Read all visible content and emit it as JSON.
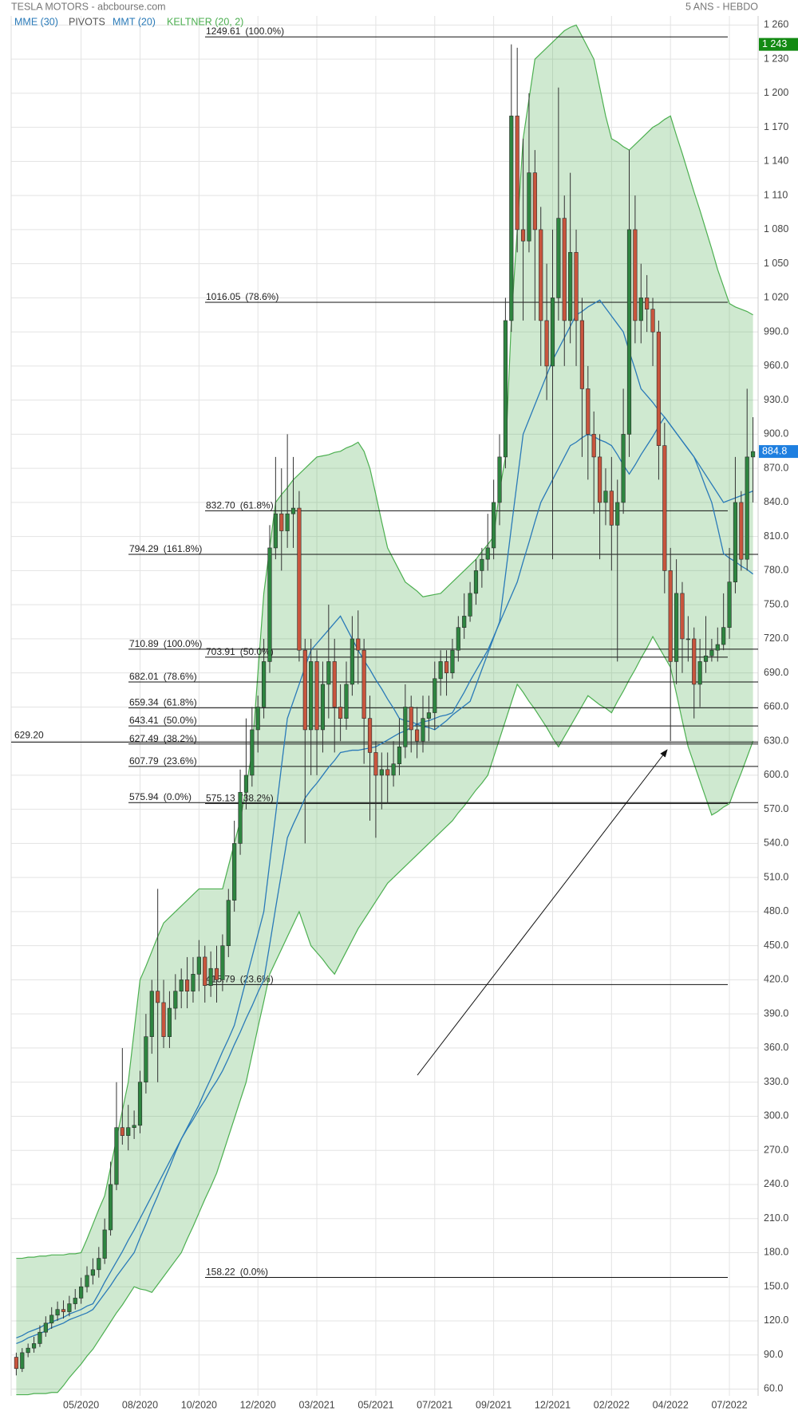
{
  "chart_data": {
    "type": "candlestick",
    "title": "TESLA MOTORS - abcbourse.com",
    "subtitle": "5 ANS - HEBDO",
    "grid": true,
    "up_color": "#2e8540",
    "down_color": "#c8553d",
    "ylim": [
      54,
      1268
    ],
    "yticks": [
      {
        "value": 60,
        "label": "60.0"
      },
      {
        "value": 90,
        "label": "90.0"
      },
      {
        "value": 120,
        "label": "120.0"
      },
      {
        "value": 150,
        "label": "150.0"
      },
      {
        "value": 180,
        "label": "180.0"
      },
      {
        "value": 210,
        "label": "210.0"
      },
      {
        "value": 240,
        "label": "240.0"
      },
      {
        "value": 270,
        "label": "270.0"
      },
      {
        "value": 300,
        "label": "300.0"
      },
      {
        "value": 330,
        "label": "330.0"
      },
      {
        "value": 360,
        "label": "360.0"
      },
      {
        "value": 390,
        "label": "390.0"
      },
      {
        "value": 420,
        "label": "420.0"
      },
      {
        "value": 450,
        "label": "450.0"
      },
      {
        "value": 480,
        "label": "480.0"
      },
      {
        "value": 510,
        "label": "510.0"
      },
      {
        "value": 540,
        "label": "540.0"
      },
      {
        "value": 570,
        "label": "570.0"
      },
      {
        "value": 600,
        "label": "600.0"
      },
      {
        "value": 630,
        "label": "630.0"
      },
      {
        "value": 660,
        "label": "660.0"
      },
      {
        "value": 690,
        "label": "690.0"
      },
      {
        "value": 720,
        "label": "720.0"
      },
      {
        "value": 750,
        "label": "750.0"
      },
      {
        "value": 780,
        "label": "780.0"
      },
      {
        "value": 810,
        "label": "810.0"
      },
      {
        "value": 840,
        "label": "840.0"
      },
      {
        "value": 870,
        "label": "870.0"
      },
      {
        "value": 900,
        "label": "900.0"
      },
      {
        "value": 930,
        "label": "930.0"
      },
      {
        "value": 960,
        "label": "960.0"
      },
      {
        "value": 990,
        "label": "990.0"
      },
      {
        "value": 1020,
        "label": "1 020"
      },
      {
        "value": 1050,
        "label": "1 050"
      },
      {
        "value": 1080,
        "label": "1 080"
      },
      {
        "value": 1110,
        "label": "1 110"
      },
      {
        "value": 1140,
        "label": "1 140"
      },
      {
        "value": 1170,
        "label": "1 170"
      },
      {
        "value": 1200,
        "label": "1 200"
      },
      {
        "value": 1230,
        "label": "1 230"
      },
      {
        "value": 1260,
        "label": "1 260"
      }
    ],
    "categories": [
      null,
      null,
      null,
      null,
      null,
      null,
      null,
      null,
      null,
      null,
      null,
      "05/2020",
      null,
      null,
      null,
      null,
      null,
      null,
      null,
      null,
      null,
      "08/2020",
      null,
      null,
      null,
      null,
      null,
      null,
      null,
      null,
      null,
      "10/2020",
      null,
      null,
      null,
      null,
      null,
      null,
      null,
      null,
      null,
      "12/2020",
      null,
      null,
      null,
      null,
      null,
      null,
      null,
      null,
      null,
      "03/2021",
      null,
      null,
      null,
      null,
      null,
      null,
      null,
      null,
      null,
      "05/2021",
      null,
      null,
      null,
      null,
      null,
      null,
      null,
      null,
      null,
      "07/2021",
      null,
      null,
      null,
      null,
      null,
      null,
      null,
      null,
      null,
      "09/2021",
      null,
      null,
      null,
      null,
      null,
      null,
      null,
      null,
      null,
      "12/2021",
      null,
      null,
      null,
      null,
      null,
      null,
      null,
      null,
      null,
      "02/2022",
      null,
      null,
      null,
      null,
      null,
      null,
      null,
      null,
      null,
      "04/2022",
      null,
      null,
      null,
      null,
      null,
      null,
      null,
      null,
      null,
      "07/2022",
      null,
      null,
      null,
      null
    ],
    "open": [
      88,
      78,
      92,
      96,
      100,
      110,
      118,
      125,
      130,
      128,
      135,
      140,
      150,
      160,
      165,
      175,
      200,
      240,
      290,
      283,
      290,
      292,
      330,
      370,
      410,
      400,
      370,
      395,
      410,
      420,
      410,
      425,
      440,
      415,
      430,
      420,
      450,
      490,
      540,
      585,
      600,
      640,
      660,
      700,
      800,
      830,
      815,
      830,
      835,
      710,
      640,
      700,
      640,
      680,
      700,
      660,
      650,
      680,
      720,
      710,
      650,
      620,
      600,
      605,
      600,
      610,
      625,
      660,
      640,
      630,
      650,
      655,
      685,
      700,
      690,
      710,
      730,
      740,
      760,
      780,
      790,
      800,
      840,
      880,
      1000,
      1180,
      1080,
      1070,
      1130,
      1080,
      1000,
      960,
      1020,
      1090,
      1000,
      1060,
      1000,
      940,
      900,
      880,
      840,
      850,
      820,
      840,
      900,
      1080,
      1000,
      1020,
      1010,
      990,
      890,
      780,
      700,
      760,
      720,
      720,
      680,
      700,
      705,
      710,
      715,
      730,
      770,
      840,
      790,
      880
    ],
    "high": [
      92,
      96,
      100,
      106,
      116,
      124,
      132,
      137,
      138,
      142,
      148,
      158,
      168,
      175,
      185,
      210,
      260,
      330,
      360,
      310,
      305,
      340,
      390,
      420,
      500,
      420,
      410,
      425,
      430,
      440,
      440,
      455,
      450,
      445,
      450,
      460,
      500,
      560,
      605,
      650,
      660,
      670,
      720,
      820,
      880,
      870,
      900,
      880,
      850,
      720,
      720,
      710,
      700,
      750,
      720,
      680,
      700,
      740,
      745,
      720,
      670,
      630,
      620,
      620,
      630,
      650,
      680,
      670,
      660,
      670,
      670,
      700,
      710,
      710,
      720,
      740,
      760,
      770,
      790,
      800,
      830,
      860,
      900,
      1020,
      1243,
      1240,
      1160,
      1200,
      1150,
      1100,
      1050,
      1080,
      1205,
      1110,
      1130,
      1080,
      1020,
      960,
      920,
      900,
      870,
      880,
      860,
      940,
      1150,
      1110,
      1050,
      1040,
      1020,
      1000,
      910,
      800,
      790,
      770,
      740,
      730,
      720,
      740,
      720,
      730,
      760,
      800,
      880,
      850,
      940,
      915
    ],
    "low": [
      72,
      75,
      88,
      92,
      97,
      106,
      113,
      120,
      122,
      124,
      130,
      135,
      145,
      152,
      158,
      170,
      195,
      235,
      275,
      270,
      280,
      285,
      320,
      355,
      330,
      360,
      360,
      385,
      395,
      395,
      400,
      410,
      400,
      405,
      400,
      410,
      440,
      480,
      530,
      570,
      590,
      620,
      650,
      690,
      790,
      780,
      800,
      800,
      700,
      540,
      600,
      600,
      620,
      650,
      620,
      630,
      640,
      670,
      680,
      610,
      560,
      545,
      570,
      575,
      590,
      600,
      615,
      620,
      615,
      620,
      630,
      640,
      670,
      670,
      685,
      700,
      720,
      735,
      750,
      765,
      780,
      790,
      820,
      870,
      990,
      1060,
      1000,
      1060,
      1000,
      960,
      930,
      790,
      1000,
      960,
      980,
      960,
      880,
      860,
      830,
      790,
      820,
      780,
      700,
      830,
      880,
      980,
      980,
      990,
      960,
      860,
      760,
      630,
      680,
      690,
      700,
      650,
      660,
      690,
      700,
      700,
      710,
      720,
      760,
      780,
      780,
      840
    ],
    "close": [
      78,
      92,
      96,
      100,
      110,
      118,
      125,
      130,
      128,
      135,
      140,
      150,
      160,
      165,
      175,
      200,
      240,
      290,
      283,
      290,
      292,
      330,
      370,
      410,
      400,
      370,
      395,
      410,
      420,
      410,
      425,
      440,
      415,
      430,
      420,
      450,
      490,
      540,
      585,
      600,
      640,
      660,
      700,
      800,
      830,
      815,
      830,
      835,
      710,
      640,
      700,
      640,
      680,
      700,
      660,
      650,
      680,
      720,
      710,
      650,
      620,
      600,
      605,
      600,
      610,
      625,
      660,
      640,
      630,
      650,
      655,
      685,
      700,
      690,
      710,
      730,
      740,
      760,
      780,
      790,
      800,
      840,
      880,
      1000,
      1180,
      1080,
      1070,
      1130,
      1080,
      1000,
      960,
      1020,
      1090,
      1000,
      1060,
      1000,
      940,
      900,
      880,
      840,
      850,
      820,
      840,
      900,
      1080,
      1000,
      1020,
      1010,
      990,
      890,
      780,
      700,
      760,
      720,
      720,
      680,
      700,
      705,
      710,
      715,
      730,
      770,
      840,
      790,
      880,
      884.8
    ],
    "series": [
      {
        "name": "MME (30)",
        "color": "#2a7ab8",
        "values": [
          100,
          102,
          105,
          107,
          109,
          111,
          114,
          116,
          118,
          121,
          123,
          125,
          127,
          130,
          137,
          144,
          151,
          159,
          166,
          173,
          180,
          193,
          205,
          218,
          230,
          243,
          255,
          268,
          280,
          289,
          297,
          306,
          314,
          323,
          331,
          340,
          351,
          363,
          374,
          386,
          397,
          409,
          420,
          451,
          483,
          514,
          545,
          557,
          568,
          580,
          587,
          593,
          600,
          607,
          613,
          620,
          621,
          622,
          622,
          623,
          624,
          625,
          628,
          631,
          634,
          637,
          639,
          642,
          645,
          647,
          648,
          650,
          652,
          653,
          655,
          664,
          673,
          683,
          692,
          701,
          710,
          722,
          734,
          746,
          758,
          770,
          788,
          805,
          823,
          840,
          850,
          860,
          870,
          880,
          890,
          893,
          897,
          900,
          898,
          895,
          893,
          890,
          882,
          873,
          865,
          873,
          882,
          890,
          898,
          907,
          915,
          908,
          901,
          894,
          887,
          880,
          872,
          864,
          856,
          848,
          840,
          842,
          844,
          846,
          848,
          850
        ]
      },
      {
        "name": "MMT (20)",
        "color": "#2a7ab8",
        "values": [
          105,
          107,
          110,
          112,
          114,
          117,
          119,
          121,
          123,
          126,
          128,
          130,
          133,
          135,
          144,
          154,
          163,
          172,
          181,
          191,
          200,
          210,
          220,
          230,
          240,
          250,
          260,
          270,
          280,
          290,
          300,
          310,
          322,
          333,
          345,
          357,
          368,
          380,
          400,
          420,
          440,
          460,
          480,
          523,
          565,
          608,
          650,
          665,
          680,
          695,
          710,
          716,
          722,
          728,
          734,
          740,
          730,
          720,
          710,
          701,
          693,
          684,
          676,
          667,
          659,
          650,
          648,
          647,
          645,
          643,
          642,
          640,
          644,
          648,
          653,
          657,
          661,
          665,
          679,
          693,
          707,
          721,
          735,
          776,
          818,
          859,
          900,
          913,
          926,
          939,
          952,
          965,
          975,
          985,
          995,
          1005,
          1008,
          1012,
          1015,
          1018,
          1011,
          1004,
          997,
          990,
          973,
          957,
          940,
          934,
          928,
          921,
          915,
          908,
          901,
          894,
          887,
          880,
          867,
          853,
          840,
          818,
          795,
          791,
          788,
          784,
          781,
          777
        ]
      }
    ],
    "keltner": {
      "name": "KELTNER (20, 2)",
      "color": "#4caf50",
      "upper": [
        175,
        175,
        176,
        176,
        177,
        177,
        178,
        178,
        178,
        179,
        179,
        180,
        192,
        205,
        218,
        230,
        255,
        280,
        305,
        330,
        375,
        420,
        432,
        445,
        458,
        470,
        475,
        480,
        485,
        490,
        495,
        500,
        500,
        500,
        500,
        500,
        520,
        540,
        560,
        590,
        620,
        690,
        760,
        800,
        840,
        847,
        853,
        860,
        865,
        870,
        875,
        880,
        881,
        882,
        884,
        885,
        888,
        890,
        893,
        885,
        870,
        847,
        823,
        800,
        790,
        780,
        770,
        766,
        762,
        757,
        758,
        759,
        760,
        765,
        770,
        775,
        780,
        785,
        790,
        797,
        803,
        810,
        850,
        880,
        1000,
        1080,
        1160,
        1195,
        1230,
        1235,
        1240,
        1245,
        1250,
        1255,
        1258,
        1260,
        1250,
        1240,
        1230,
        1205,
        1180,
        1160,
        1157,
        1153,
        1150,
        1155,
        1160,
        1165,
        1170,
        1173,
        1177,
        1180,
        1163,
        1147,
        1130,
        1113,
        1097,
        1080,
        1063,
        1045,
        1030,
        1015,
        1012,
        1010,
        1008,
        1005
      ],
      "lower": [
        55,
        55,
        55,
        56,
        56,
        56,
        57,
        57,
        63,
        70,
        76,
        82,
        89,
        95,
        103,
        111,
        119,
        127,
        134,
        142,
        150,
        148,
        147,
        145,
        152,
        159,
        166,
        173,
        180,
        192,
        203,
        215,
        227,
        238,
        250,
        266,
        282,
        298,
        314,
        330,
        354,
        378,
        401,
        425,
        436,
        447,
        458,
        469,
        480,
        465,
        450,
        444,
        438,
        431,
        425,
        435,
        445,
        455,
        465,
        473,
        481,
        489,
        497,
        505,
        510,
        515,
        520,
        525,
        530,
        535,
        540,
        545,
        550,
        555,
        560,
        567,
        573,
        580,
        587,
        593,
        600,
        616,
        632,
        648,
        664,
        680,
        673,
        665,
        658,
        650,
        642,
        633,
        625,
        634,
        643,
        652,
        661,
        670,
        666,
        662,
        659,
        655,
        665,
        674,
        684,
        693,
        703,
        712,
        722,
        713,
        704,
        695,
        672,
        648,
        625,
        610,
        595,
        580,
        565,
        568,
        572,
        575,
        589,
        602,
        616,
        630
      ]
    },
    "pivots": {
      "name": "PIVOTS",
      "color": "#555555",
      "sets": [
        {
          "levels": [
            {
              "value": 1249.61,
              "label": "1249.61",
              "ratio": "(100.0%)"
            },
            {
              "value": 1016.05,
              "label": "1016.05",
              "ratio": "(78.6%)"
            },
            {
              "value": 832.7,
              "label": "832.70",
              "ratio": "(61.8%)"
            },
            {
              "value": 703.91,
              "label": "703.91",
              "ratio": "(50.0%)"
            },
            {
              "value": 575.13,
              "label": "575.13",
              "ratio": "(38.2%)"
            },
            {
              "value": 415.79,
              "label": "415.79",
              "ratio": "(23.6%)"
            },
            {
              "value": 158.22,
              "label": "158.22",
              "ratio": "(0.0%)"
            }
          ]
        },
        {
          "levels": [
            {
              "value": 794.29,
              "label": "794.29",
              "ratio": "(161.8%)"
            },
            {
              "value": 710.89,
              "label": "710.89",
              "ratio": "(100.0%)"
            },
            {
              "value": 682.01,
              "label": "682.01",
              "ratio": "(78.6%)"
            },
            {
              "value": 659.34,
              "label": "659.34",
              "ratio": "(61.8%)"
            },
            {
              "value": 643.41,
              "label": "643.41",
              "ratio": "(50.0%)"
            },
            {
              "value": 627.49,
              "label": "627.49",
              "ratio": "(38.2%)"
            },
            {
              "value": 607.79,
              "label": "607.79",
              "ratio": "(23.6%)"
            },
            {
              "value": 575.94,
              "label": "575.94",
              "ratio": "(0.0%)"
            }
          ]
        }
      ]
    },
    "hline": {
      "value": 629.2,
      "label": "629.20"
    },
    "markers": [
      {
        "value": 1243,
        "label": "1 243",
        "color": "#138a13"
      }
    ],
    "last_color": "#1e7fe0"
  }
}
